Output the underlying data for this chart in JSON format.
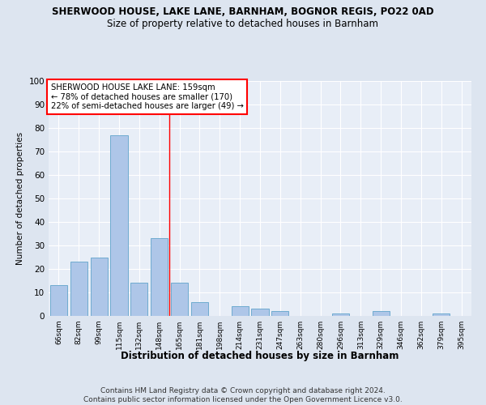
{
  "title": "SHERWOOD HOUSE, LAKE LANE, BARNHAM, BOGNOR REGIS, PO22 0AD",
  "subtitle": "Size of property relative to detached houses in Barnham",
  "xlabel": "Distribution of detached houses by size in Barnham",
  "ylabel": "Number of detached properties",
  "footnote": "Contains HM Land Registry data © Crown copyright and database right 2024.\nContains public sector information licensed under the Open Government Licence v3.0.",
  "categories": [
    "66sqm",
    "82sqm",
    "99sqm",
    "115sqm",
    "132sqm",
    "148sqm",
    "165sqm",
    "181sqm",
    "198sqm",
    "214sqm",
    "231sqm",
    "247sqm",
    "263sqm",
    "280sqm",
    "296sqm",
    "313sqm",
    "329sqm",
    "346sqm",
    "362sqm",
    "379sqm",
    "395sqm"
  ],
  "values": [
    13,
    23,
    25,
    77,
    14,
    33,
    14,
    6,
    0,
    4,
    3,
    2,
    0,
    0,
    1,
    0,
    2,
    0,
    0,
    1,
    0
  ],
  "bar_color": "#aec6e8",
  "bar_edge_color": "#6fabd0",
  "reference_line_color": "red",
  "reference_line_x": 5.5,
  "annotation_text": "SHERWOOD HOUSE LAKE LANE: 159sqm\n← 78% of detached houses are smaller (170)\n22% of semi-detached houses are larger (49) →",
  "annotation_box_color": "white",
  "annotation_box_edge_color": "red",
  "ylim": [
    0,
    100
  ],
  "yticks": [
    0,
    10,
    20,
    30,
    40,
    50,
    60,
    70,
    80,
    90,
    100
  ],
  "bg_color": "#dde5f0",
  "plot_bg_color": "#e8eef7",
  "title_fontsize": 8.5,
  "subtitle_fontsize": 8.5,
  "footnote_fontsize": 6.5
}
